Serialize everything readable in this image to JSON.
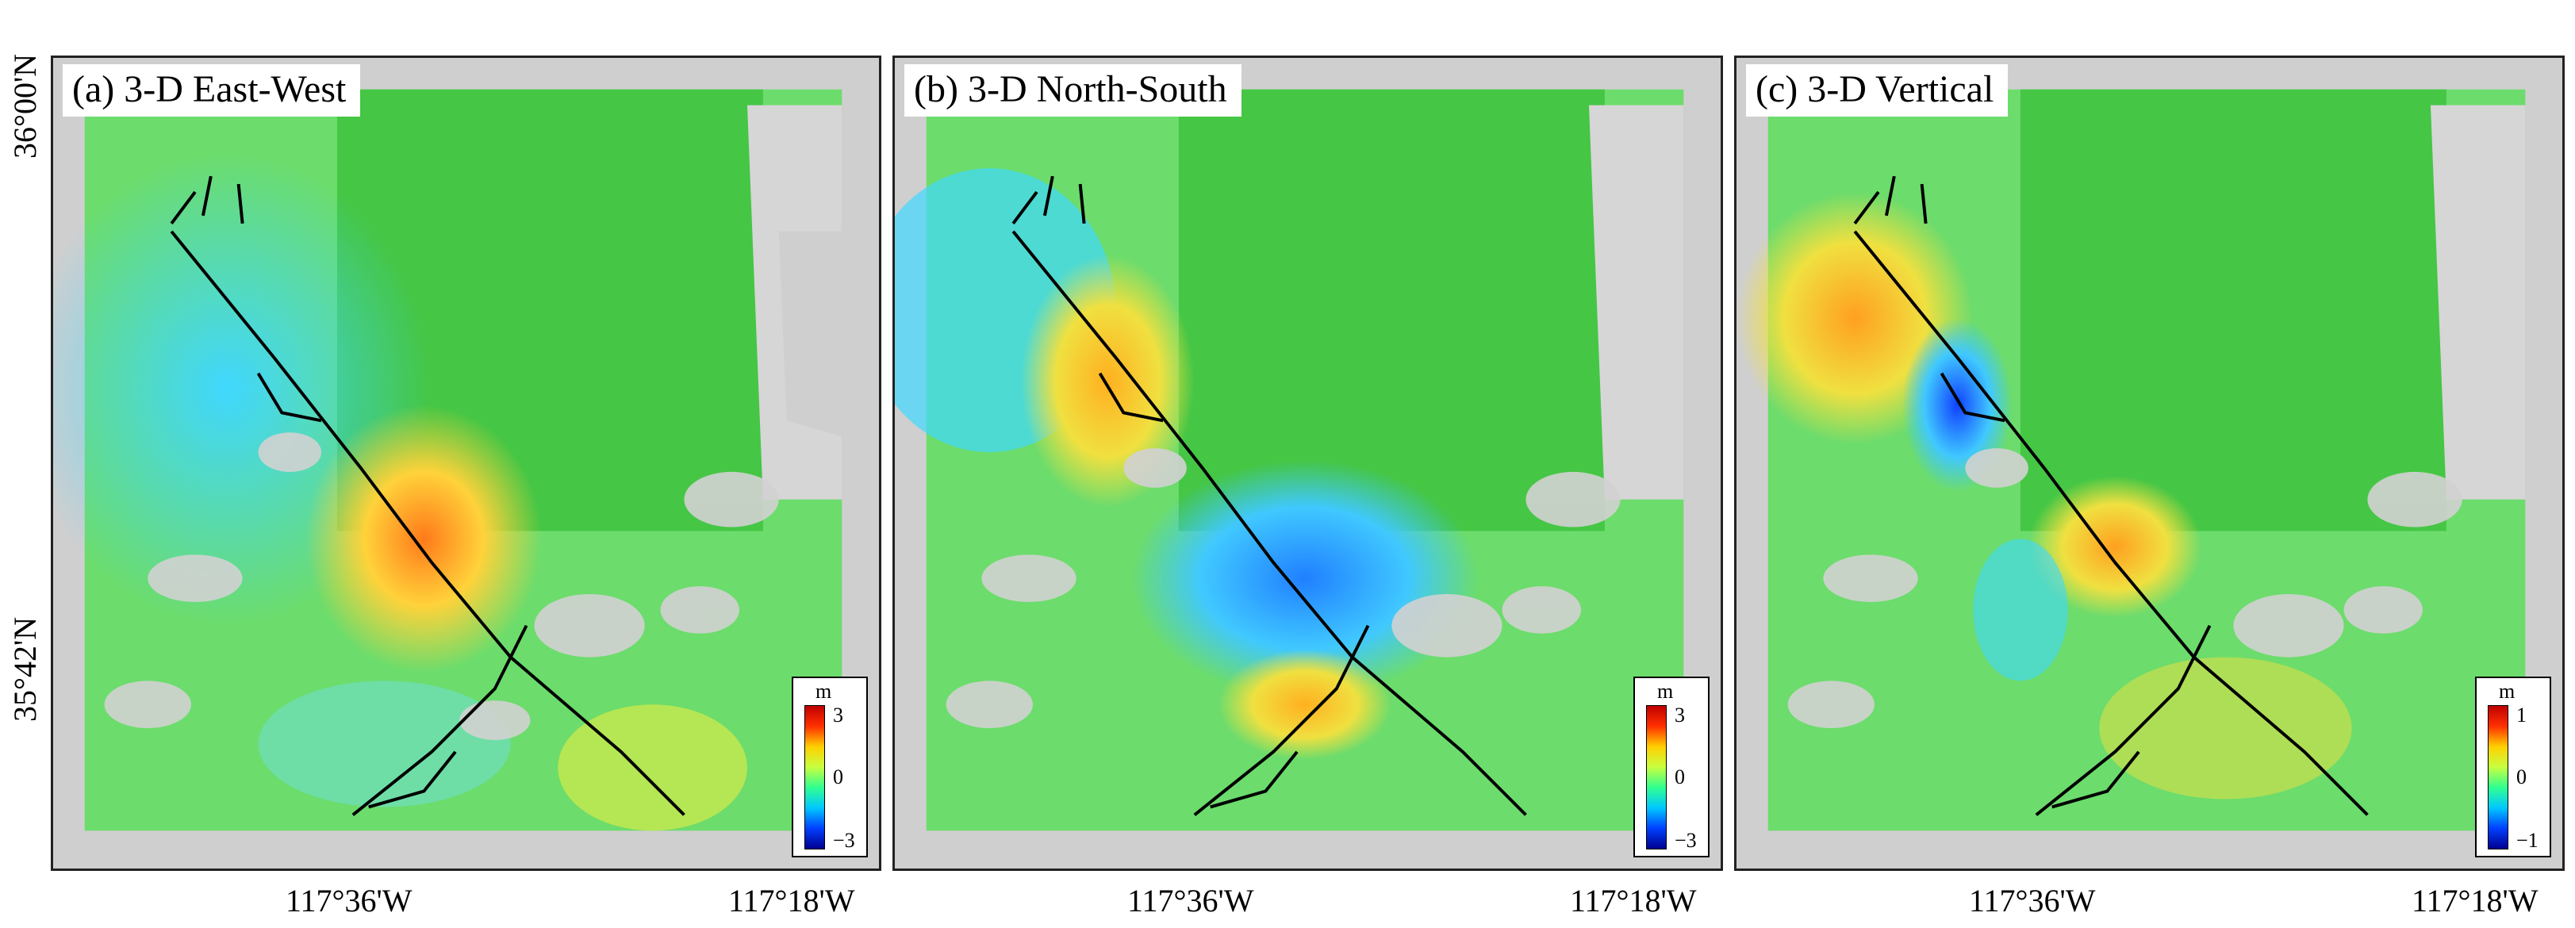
{
  "panels": [
    {
      "title": "(a) 3-D East-West",
      "unit": "m",
      "max": "3",
      "mid": "0",
      "min": "−3"
    },
    {
      "title": "(b) 3-D North-South",
      "unit": "m",
      "max": "3",
      "mid": "0",
      "min": "−3"
    },
    {
      "title": "(c) 3-D Vertical",
      "unit": "m",
      "max": "1",
      "mid": "0",
      "min": "−1"
    }
  ],
  "lon_labels": [
    "117°36'W",
    "117°18'W"
  ],
  "lat_labels": [
    "36°00'N",
    "35°42'N"
  ],
  "colors": {
    "frame": "#222222",
    "fault": "#000000",
    "background": "#cfcfcf"
  }
}
